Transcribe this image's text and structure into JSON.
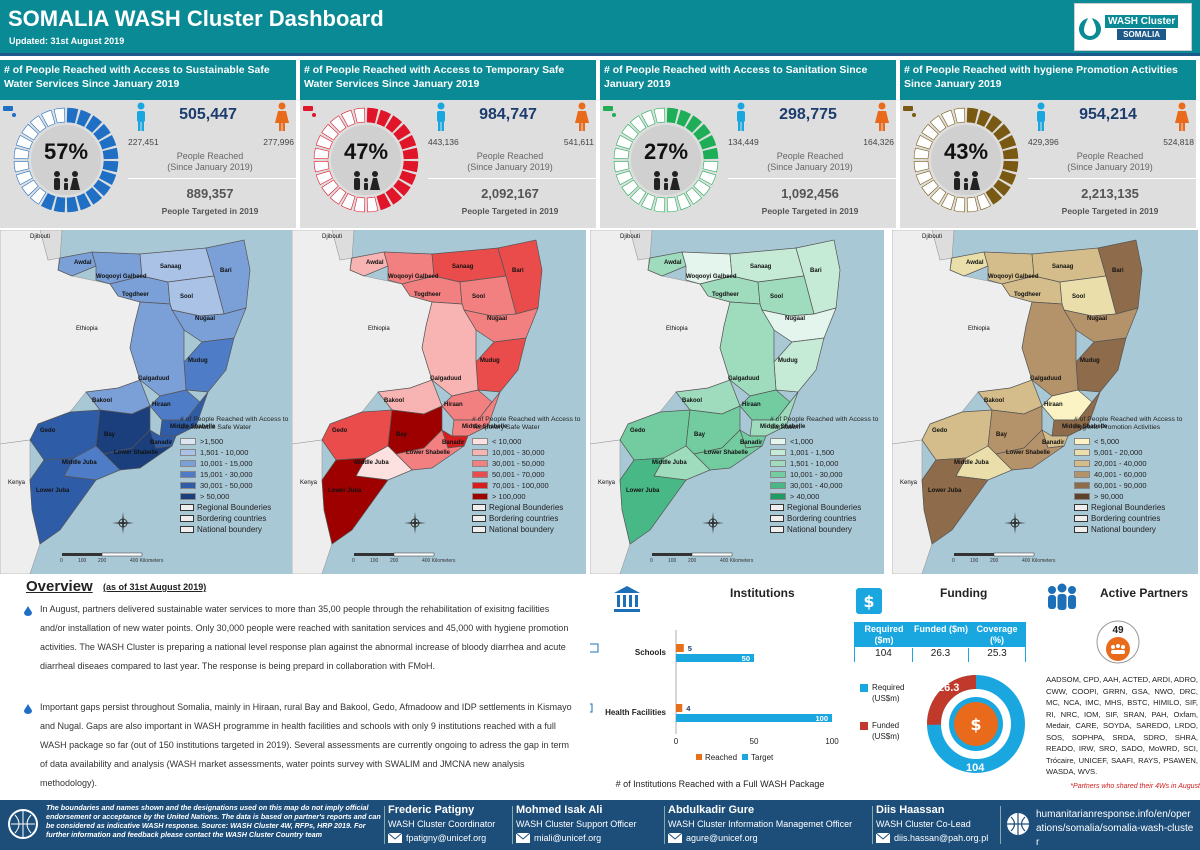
{
  "header": {
    "title": "SOMALIA WASH Cluster Dashboard",
    "updated": "Updated: 31st August 2019",
    "logo_line1": "WASH Cluster",
    "logo_line2": "SOMALIA"
  },
  "colors": {
    "teal": "#0a8a94",
    "navy": "#1d4e7a",
    "water": "#1f6fc5",
    "temp_water": "#e0152a",
    "sanitation": "#1dae57",
    "hygiene": "#7a5a12"
  },
  "kpis": [
    {
      "title": "# of People Reached with Access to Sustainable Safe Water Services Since January 2019",
      "icon": "water-tap-icon",
      "percent_label": "57%",
      "percent": 57,
      "reached": "505,447",
      "male": "227,451",
      "female": "277,996",
      "reached_label_1": "People Reached",
      "reached_label_2": "(Since January 2019)",
      "target": "889,357",
      "target_label": "People Targeted in 2019",
      "color": "#1f6fc5"
    },
    {
      "title": "# of People Reached with Access to Temporary Safe Water Services Since January 2019",
      "icon": "water-truck-icon",
      "percent_label": "47%",
      "percent": 47,
      "reached": "984,747",
      "male": "443,136",
      "female": "541,611",
      "reached_label_1": "People Reached",
      "reached_label_2": "(Since January 2019)",
      "target": "2,092,167",
      "target_label": "People Targeted in 2019",
      "color": "#e0152a"
    },
    {
      "title": "# of People Reached with Access to Sanitation Since January 2019",
      "icon": "toilet-icon",
      "percent_label": "27%",
      "percent": 27,
      "reached": "298,775",
      "male": "134,449",
      "female": "164,326",
      "reached_label_1": "People Reached",
      "reached_label_2": "(Since January 2019)",
      "target": "1,092,456",
      "target_label": "People Targeted in 2019",
      "color": "#1dae57"
    },
    {
      "title": "# of People Reached with hygiene Promotion Activities Since January 2019",
      "icon": "soap-icon",
      "percent_label": "43%",
      "percent": 43,
      "reached": "954,214",
      "male": "429,396",
      "female": "524,818",
      "reached_label_1": "People Reached",
      "reached_label_2": "(Since January 2019)",
      "target": "2,213,135",
      "target_label": "People Targeted in 2019",
      "color": "#7a5a12"
    }
  ],
  "map_common": {
    "regions": [
      "Awdal",
      "Woqooyi Galbeed",
      "Togdheer",
      "Sanaag",
      "Bari",
      "Sool",
      "Nugaal",
      "Mudug",
      "Galgaduud",
      "Hiraan",
      "Bakool",
      "Gedo",
      "Bay",
      "Middle Shabelle",
      "Banadir",
      "Lower Shabelle",
      "Middle Juba",
      "Lower Juba"
    ],
    "ethiopia": "Ethiopia",
    "kenya": "Kenya",
    "djibouti": "Djibouti",
    "scale_0": "0",
    "scale_1": "100",
    "scale_2": "200",
    "scale_3": "400 Kilometers",
    "boundary_1": "Regional Bounderies",
    "boundary_2": "Bordering countries",
    "boundary_3": "National boundery"
  },
  "maps": [
    {
      "legend_title": "# of People Reached with Access to Sustainable Safe Water",
      "legend": [
        ">1,500",
        "1,501 - 10,000",
        "10,001 - 15,000",
        "15,001 - 30,000",
        "30,001 - 50,000",
        "> 50,000"
      ],
      "palette": [
        "#dbe6f5",
        "#a9c2e6",
        "#7ba0d8",
        "#4f7cc6",
        "#2f5ca6",
        "#1a3f7c"
      ],
      "region_classes": [
        2,
        2,
        2,
        1,
        2,
        1,
        2,
        3,
        2,
        3,
        2,
        4,
        5,
        4,
        4,
        5,
        3,
        4
      ]
    },
    {
      "legend_title": "# of People Reached with Access to Temporary Safe Water",
      "legend": [
        "< 10,000",
        "10,001 - 30,000",
        "30,001 - 50,000",
        "50,001 - 70,000",
        "70,001 - 100,000",
        "> 100,000"
      ],
      "palette": [
        "#fde1e1",
        "#f8b3b3",
        "#f28080",
        "#ea4b4b",
        "#d61c1c",
        "#9e0000"
      ],
      "region_classes": [
        1,
        2,
        2,
        3,
        3,
        2,
        2,
        3,
        1,
        2,
        1,
        3,
        5,
        2,
        4,
        2,
        0,
        5
      ]
    },
    {
      "legend_title": "# of People Reached with Access to Sanitation",
      "legend": [
        "<1,000",
        "1,001 - 1,500",
        "1,501 - 10,000",
        "10,001 - 30,000",
        "30,001 - 40,000",
        "> 40,000"
      ],
      "palette": [
        "#e3f5ec",
        "#c5ead6",
        "#9fdcbd",
        "#73cba0",
        "#48b986",
        "#1f9c63"
      ],
      "region_classes": [
        2,
        0,
        2,
        1,
        1,
        2,
        0,
        1,
        2,
        3,
        2,
        3,
        3,
        2,
        3,
        3,
        2,
        4
      ]
    },
    {
      "legend_title": "# of People Reached with Access to Hygiene Promotion Activities",
      "legend": [
        "< 5,000",
        "5,001 - 20,000",
        "20,001 - 40,000",
        "40,001 - 60,000",
        "60,001 - 90,000",
        "> 90,000"
      ],
      "palette": [
        "#fbf3c3",
        "#eadfaa",
        "#d4bd8a",
        "#b5936a",
        "#8e6b4a",
        "#5e422a"
      ],
      "region_classes": [
        1,
        2,
        2,
        2,
        4,
        1,
        3,
        4,
        3,
        0,
        2,
        2,
        3,
        4,
        2,
        3,
        1,
        4
      ]
    }
  ],
  "overview": {
    "title": "Overview",
    "date": "(as of 31st August 2019)",
    "para1": "In August, partners delivered sustainable water services to more than 35,00 people through the rehabilitation of exisitng facilities and/or installation of new water points. Only 30,000 people were reached with sanitation services and 45,000 with hygiene promotion activities. The WASH Cluster is preparing a national level response plan against the abnormal increase of bloody diarrhea and acute diarrheal diseaes compared to last year. The response is being prepard in collaboration with FMoH.",
    "para2": "Important gaps persist throughout Somalia, mainly in Hiraan, rural Bay and Bakool, Gedo, Afmadoow and IDP settlements in Kismayo and Nugal. Gaps are also important in WASH programme in health facilities and schools with only 9 institutions reached with a full WASH package so far (out of 150 institutions targeted in 2019). Several assessments are currently ongoing to adress the gap in term of data availability and analysis (WASH market assessments, water points survey with SWALIM and JMCNA new analysis methodology)."
  },
  "institutions": {
    "title": "Institutions",
    "footer": "# of Institutions Reached with a Full WASH Package",
    "legend_reached": "Reached",
    "legend_target": "Target",
    "color_reached": "#e8701a",
    "color_target": "#1aa7e0"
  },
  "chart_data": {
    "type": "bar",
    "orientation": "horizontal",
    "categories": [
      "Schools",
      "Health Facilities"
    ],
    "series": [
      {
        "name": "Reached",
        "values": [
          5,
          4
        ]
      },
      {
        "name": "Target",
        "values": [
          50,
          100
        ]
      }
    ],
    "xlim": [
      0,
      100
    ],
    "xticks": [
      "0",
      "50",
      "100"
    ],
    "title": "# of Institutions Reached with a Full WASH Package",
    "legend": "bottom"
  },
  "funding": {
    "title": "Funding",
    "head_required": "Required ($m)",
    "head_funded": "Funded ($m)",
    "head_coverage": "Coverage (%)",
    "required": "104",
    "funded": "26.3",
    "coverage": "25.3",
    "legend_required": "Required (US$m)",
    "legend_funded": "Funded (US$m)",
    "donut_funded": "26.3",
    "donut_required": "104",
    "funded_fraction": 0.253
  },
  "partners": {
    "title": "Active Partners",
    "count": "49",
    "list": "AADSOM, CPD, AAH, ACTED, ARDI, ADRO, CWW, COOPI, GRRN, GSA, NWO, DRC, MC, NCA, IMC, MHS, BSTC, HIMILO, SIF, RI, NRC, IOM, SIF, SRAN, PAH, Oxfam, Medair, CARE, SOYDA, SAREDO, LRDO, SOS, SOPHPA, SRDA, SDRO, SHRA, READO, IRW, SRO, SADO, MoWRD, SCI, Trócaire, UNICEF, SAAFI, RAYS, PSAWEN, WASDA, WVS.",
    "note": "*Partners who shared their 4Ws in August"
  },
  "footer": {
    "disclaimer": "The boundaries and names shown and the designations used on this map do not imply official endorsement or acceptance by the United Nations. The data is based on partner's reports and can be considered as indicative WASH response. Source: WASH Cluster 4W, RFPs, HRP 2019. For further information and feedback please contact the WASH Cluster Country team",
    "contacts": [
      {
        "name": "Frederic Patigny",
        "role": "WASH Cluster Coordinator",
        "email": "fpatigny@unicef.org"
      },
      {
        "name": "Mohmed Isak Ali",
        "role": "WASH Cluster Support Officer",
        "email": "miali@unicef.org"
      },
      {
        "name": "Abdulkadir Gure",
        "role": "WASH Cluster Information Managemet Officer",
        "email": "agure@unicef.org"
      },
      {
        "name": "Diis Haassan",
        "role": "WASH Cluster Co-Lead",
        "email": "diis.hassan@pah.org.pl"
      }
    ],
    "website": "humanitarianresponse.info/en/operations/somalia/somalia-wash-cluster"
  }
}
